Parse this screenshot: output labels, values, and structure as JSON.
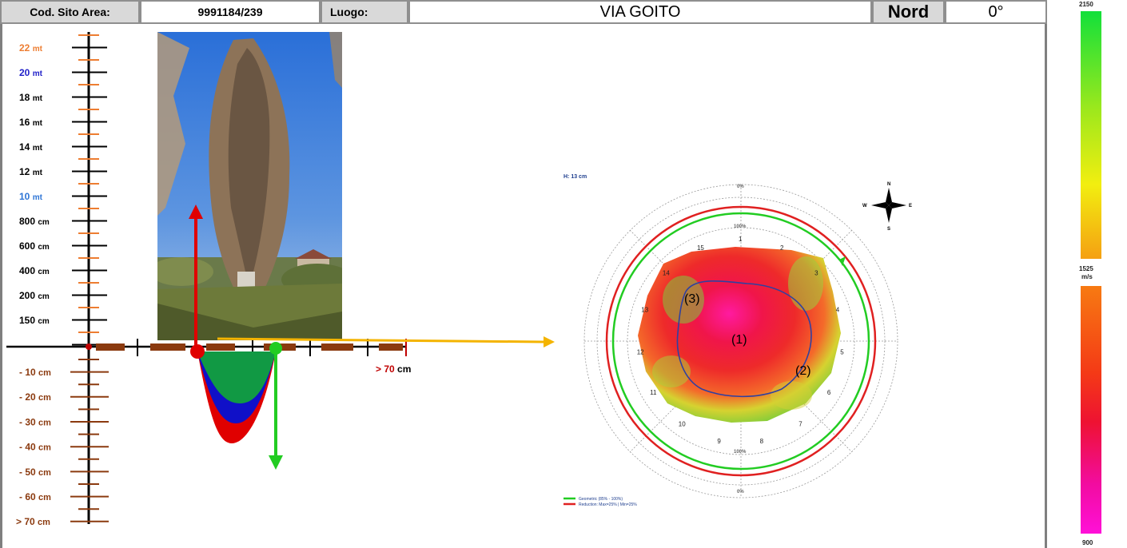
{
  "header": {
    "site_code_label": "Cod. Sito Area:",
    "site_code_value": "9991184/239",
    "place_label": "Luogo:",
    "place_value": "VIA GOITO",
    "north_label": "Nord",
    "north_value": "0°"
  },
  "height_scale": [
    {
      "num": "22",
      "unit": "mt",
      "color": "#ed7d31"
    },
    {
      "num": "20",
      "unit": "mt",
      "color": "#1f1fc8"
    },
    {
      "num": "18",
      "unit": "mt",
      "color": "#000000"
    },
    {
      "num": "16",
      "unit": "mt",
      "color": "#000000"
    },
    {
      "num": "14",
      "unit": "mt",
      "color": "#000000"
    },
    {
      "num": "12",
      "unit": "mt",
      "color": "#000000"
    },
    {
      "num": "10",
      "unit": "mt",
      "color": "#2e75d6"
    },
    {
      "num": "800",
      "unit": "cm",
      "color": "#000000"
    },
    {
      "num": "600",
      "unit": "cm",
      "color": "#000000"
    },
    {
      "num": "400",
      "unit": "cm",
      "color": "#000000"
    },
    {
      "num": "200",
      "unit": "cm",
      "color": "#000000"
    },
    {
      "num": "150",
      "unit": "cm",
      "color": "#000000"
    }
  ],
  "depth_scale": [
    {
      "num": "- 10",
      "unit": "cm"
    },
    {
      "num": "- 20",
      "unit": "cm"
    },
    {
      "num": "- 30",
      "unit": "cm"
    },
    {
      "num": "- 40",
      "unit": "cm"
    },
    {
      "num": "- 50",
      "unit": "cm"
    },
    {
      "num": "- 60",
      "unit": "cm"
    },
    {
      "num": "> 70",
      "unit": "cm"
    }
  ],
  "horizontal_end": {
    "num": "> 70",
    "unit": "cm"
  },
  "tomogram": {
    "height_note": "H: 13 cm",
    "sensors": [
      "1",
      "2",
      "3",
      "4",
      "5",
      "6",
      "7",
      "8",
      "9",
      "10",
      "11",
      "12",
      "13",
      "14",
      "15"
    ],
    "ring_pct_top": "0%",
    "ring_pct_inner_top": "100%",
    "ring_pct_inner_bottom": "100%",
    "ring_pct_bottom": "0%",
    "regions": [
      "(1)",
      "(2)",
      "(3)"
    ],
    "compass": {
      "n": "N",
      "s": "S",
      "e": "E",
      "w": "W"
    },
    "legend": [
      {
        "label": "Geometric (85% - 100%)",
        "color": "#22cc22"
      },
      {
        "label": "Reduction: Max=25% | Min=25%",
        "color": "#e02020"
      }
    ]
  },
  "velocity_scale": {
    "top": "2150",
    "mid_value": "1525",
    "mid_unit": "m/s",
    "bottom": "900"
  }
}
